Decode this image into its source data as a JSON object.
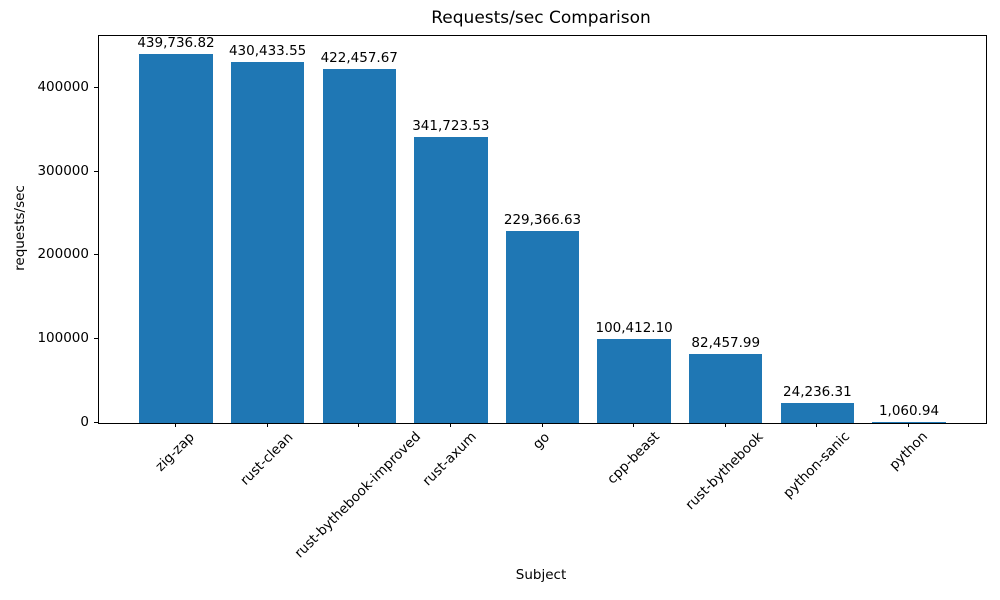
{
  "chart_data": {
    "type": "bar",
    "title": "Requests/sec Comparison",
    "xlabel": "Subject",
    "ylabel": "requests/sec",
    "categories": [
      "zig-zap",
      "rust-clean",
      "rust-bythebook-improved",
      "rust-axum",
      "go",
      "cpp-beast",
      "rust-bythebook",
      "python-sanic",
      "python"
    ],
    "values": [
      439736.82,
      430433.55,
      422457.67,
      341723.53,
      229366.63,
      100412.1,
      82457.99,
      24236.31,
      1060.94
    ],
    "value_labels": [
      "439,736.82",
      "430,433.55",
      "422,457.67",
      "341,723.53",
      "229,366.63",
      "100,412.10",
      "82,457.99",
      "24,236.31",
      "1,060.94"
    ],
    "yticks": [
      0,
      100000,
      200000,
      300000,
      400000
    ],
    "ytick_labels": [
      "0",
      "100000",
      "200000",
      "300000",
      "400000"
    ],
    "ylim": [
      0,
      461724
    ],
    "grid": false,
    "legend": "none",
    "bar_color": "#1f77b4",
    "text_color": "#000000",
    "background_color": "#ffffff"
  }
}
